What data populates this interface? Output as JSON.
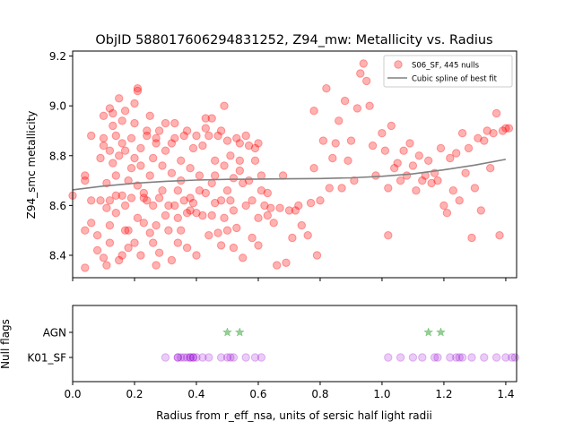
{
  "title": "ObjID 588017606294831252, Z94_mw: Metallicity vs. Radius",
  "chart_data": [
    {
      "type": "scatter",
      "ylabel": "Z94_smc metallicity",
      "xlim": [
        0.0,
        1.435
      ],
      "ylim": [
        8.31,
        9.22
      ],
      "yticks": [
        "8.4",
        "8.6",
        "8.8",
        "9.0",
        "9.2"
      ],
      "ytick_values": [
        8.4,
        8.6,
        8.8,
        9.0,
        9.2
      ],
      "xtick_values": [
        0.0,
        0.2,
        0.4,
        0.6,
        0.8,
        1.0,
        1.2,
        1.4
      ],
      "legend_position": "top-right",
      "series": [
        {
          "name": "S06_SF, 445 nulls",
          "kind": "scatter",
          "color": "#ff0000",
          "points": [
            [
              0.0,
              8.64
            ],
            [
              0.04,
              8.35
            ],
            [
              0.04,
              8.5
            ],
            [
              0.04,
              8.72
            ],
            [
              0.04,
              8.7
            ],
            [
              0.06,
              8.62
            ],
            [
              0.06,
              8.53
            ],
            [
              0.06,
              8.88
            ],
            [
              0.08,
              8.48
            ],
            [
              0.08,
              8.42
            ],
            [
              0.09,
              8.79
            ],
            [
              0.09,
              8.62
            ],
            [
              0.1,
              8.39
            ],
            [
              0.1,
              8.84
            ],
            [
              0.1,
              8.87
            ],
            [
              0.1,
              8.96
            ],
            [
              0.11,
              8.69
            ],
            [
              0.11,
              8.59
            ],
            [
              0.11,
              8.36
            ],
            [
              0.12,
              8.82
            ],
            [
              0.12,
              8.52
            ],
            [
              0.12,
              8.62
            ],
            [
              0.12,
              8.99
            ],
            [
              0.12,
              8.45
            ],
            [
              0.13,
              8.92
            ],
            [
              0.13,
              8.97
            ],
            [
              0.13,
              8.77
            ],
            [
              0.14,
              8.88
            ],
            [
              0.14,
              8.72
            ],
            [
              0.14,
              8.64
            ],
            [
              0.14,
              8.57
            ],
            [
              0.15,
              8.8
            ],
            [
              0.15,
              8.38
            ],
            [
              0.15,
              9.03
            ],
            [
              0.16,
              8.85
            ],
            [
              0.16,
              8.94
            ],
            [
              0.16,
              8.64
            ],
            [
              0.16,
              8.4
            ],
            [
              0.17,
              8.5
            ],
            [
              0.17,
              8.6
            ],
            [
              0.17,
              8.82
            ],
            [
              0.17,
              8.98
            ],
            [
              0.18,
              8.7
            ],
            [
              0.18,
              8.5
            ],
            [
              0.18,
              8.43
            ],
            [
              0.19,
              8.87
            ],
            [
              0.19,
              8.63
            ],
            [
              0.19,
              8.75
            ],
            [
              0.2,
              8.93
            ],
            [
              0.2,
              8.79
            ],
            [
              0.2,
              9.01
            ],
            [
              0.2,
              8.45
            ],
            [
              0.21,
              8.55
            ],
            [
              0.21,
              8.68
            ],
            [
              0.21,
              9.06
            ],
            [
              0.21,
              9.07
            ],
            [
              0.22,
              8.76
            ],
            [
              0.22,
              8.4
            ],
            [
              0.22,
              8.83
            ],
            [
              0.23,
              8.63
            ],
            [
              0.23,
              8.53
            ],
            [
              0.23,
              8.65
            ],
            [
              0.24,
              8.88
            ],
            [
              0.24,
              8.62
            ],
            [
              0.24,
              8.9
            ],
            [
              0.25,
              8.49
            ],
            [
              0.25,
              8.72
            ],
            [
              0.25,
              8.96
            ],
            [
              0.26,
              8.6
            ],
            [
              0.26,
              8.79
            ],
            [
              0.26,
              8.45
            ],
            [
              0.27,
              8.85
            ],
            [
              0.27,
              8.36
            ],
            [
              0.27,
              8.52
            ],
            [
              0.27,
              8.87
            ],
            [
              0.28,
              8.9
            ],
            [
              0.28,
              8.63
            ],
            [
              0.28,
              8.41
            ],
            [
              0.29,
              8.66
            ],
            [
              0.29,
              8.76
            ],
            [
              0.3,
              8.56
            ],
            [
              0.3,
              8.82
            ],
            [
              0.3,
              8.93
            ],
            [
              0.31,
              8.5
            ],
            [
              0.31,
              8.6
            ],
            [
              0.32,
              8.85
            ],
            [
              0.32,
              8.73
            ],
            [
              0.32,
              8.38
            ],
            [
              0.33,
              8.6
            ],
            [
              0.33,
              8.87
            ],
            [
              0.33,
              8.93
            ],
            [
              0.34,
              8.45
            ],
            [
              0.34,
              8.55
            ],
            [
              0.34,
              8.66
            ],
            [
              0.35,
              8.78
            ],
            [
              0.35,
              8.7
            ],
            [
              0.35,
              8.5
            ],
            [
              0.36,
              8.62
            ],
            [
              0.36,
              8.88
            ],
            [
              0.37,
              8.9
            ],
            [
              0.37,
              8.57
            ],
            [
              0.37,
              8.43
            ],
            [
              0.38,
              8.75
            ],
            [
              0.38,
              8.58
            ],
            [
              0.38,
              8.63
            ],
            [
              0.39,
              8.83
            ],
            [
              0.39,
              8.61
            ],
            [
              0.4,
              8.88
            ],
            [
              0.4,
              8.57
            ],
            [
              0.4,
              8.4
            ],
            [
              0.41,
              8.66
            ],
            [
              0.41,
              8.72
            ],
            [
              0.42,
              8.84
            ],
            [
              0.42,
              8.56
            ],
            [
              0.43,
              8.95
            ],
            [
              0.43,
              8.65
            ],
            [
              0.43,
              8.91
            ],
            [
              0.44,
              8.48
            ],
            [
              0.44,
              8.88
            ],
            [
              0.45,
              8.95
            ],
            [
              0.45,
              8.69
            ],
            [
              0.45,
              8.56
            ],
            [
              0.46,
              8.78
            ],
            [
              0.46,
              8.61
            ],
            [
              0.46,
              8.72
            ],
            [
              0.47,
              8.88
            ],
            [
              0.47,
              8.49
            ],
            [
              0.48,
              8.9
            ],
            [
              0.48,
              8.62
            ],
            [
              0.48,
              8.44
            ],
            [
              0.49,
              8.76
            ],
            [
              0.49,
              8.55
            ],
            [
              0.49,
              9.0
            ],
            [
              0.5,
              8.66
            ],
            [
              0.5,
              8.86
            ],
            [
              0.5,
              8.5
            ],
            [
              0.51,
              8.62
            ],
            [
              0.51,
              8.8
            ],
            [
              0.52,
              8.58
            ],
            [
              0.52,
              8.71
            ],
            [
              0.52,
              8.43
            ],
            [
              0.53,
              8.87
            ],
            [
              0.53,
              8.51
            ],
            [
              0.54,
              8.74
            ],
            [
              0.54,
              8.78
            ],
            [
              0.54,
              8.85
            ],
            [
              0.55,
              8.39
            ],
            [
              0.55,
              8.69
            ],
            [
              0.56,
              8.6
            ],
            [
              0.56,
              8.88
            ],
            [
              0.57,
              8.7
            ],
            [
              0.57,
              8.84
            ],
            [
              0.58,
              8.62
            ],
            [
              0.58,
              8.47
            ],
            [
              0.59,
              8.78
            ],
            [
              0.59,
              8.83
            ],
            [
              0.6,
              8.55
            ],
            [
              0.6,
              8.85
            ],
            [
              0.6,
              8.44
            ],
            [
              0.61,
              8.72
            ],
            [
              0.61,
              8.66
            ],
            [
              0.62,
              8.6
            ],
            [
              0.63,
              8.65
            ],
            [
              0.63,
              8.56
            ],
            [
              0.64,
              8.59
            ],
            [
              0.65,
              8.53
            ],
            [
              0.66,
              8.36
            ],
            [
              0.67,
              8.59
            ],
            [
              0.68,
              8.72
            ],
            [
              0.69,
              8.37
            ],
            [
              0.7,
              8.58
            ],
            [
              0.71,
              8.47
            ],
            [
              0.72,
              8.58
            ],
            [
              0.73,
              8.6
            ],
            [
              0.74,
              8.52
            ],
            [
              0.76,
              8.48
            ],
            [
              0.77,
              8.61
            ],
            [
              0.78,
              8.75
            ],
            [
              0.78,
              8.98
            ],
            [
              0.79,
              8.4
            ],
            [
              0.8,
              8.62
            ],
            [
              0.81,
              8.86
            ],
            [
              0.82,
              9.07
            ],
            [
              0.83,
              8.67
            ],
            [
              0.84,
              8.79
            ],
            [
              0.85,
              8.85
            ],
            [
              0.86,
              8.94
            ],
            [
              0.87,
              8.67
            ],
            [
              0.88,
              9.02
            ],
            [
              0.89,
              8.78
            ],
            [
              0.9,
              8.86
            ],
            [
              0.91,
              8.7
            ],
            [
              0.92,
              8.99
            ],
            [
              0.93,
              9.13
            ],
            [
              0.94,
              9.17
            ],
            [
              0.95,
              9.1
            ],
            [
              0.96,
              9.0
            ],
            [
              0.97,
              8.84
            ],
            [
              0.98,
              8.72
            ],
            [
              1.0,
              8.89
            ],
            [
              1.01,
              8.82
            ],
            [
              1.02,
              8.67
            ],
            [
              1.02,
              8.48
            ],
            [
              1.03,
              8.92
            ],
            [
              1.04,
              8.75
            ],
            [
              1.05,
              8.77
            ],
            [
              1.06,
              8.7
            ],
            [
              1.07,
              8.82
            ],
            [
              1.08,
              8.72
            ],
            [
              1.09,
              8.85
            ],
            [
              1.1,
              8.76
            ],
            [
              1.11,
              8.66
            ],
            [
              1.12,
              8.8
            ],
            [
              1.13,
              8.7
            ],
            [
              1.14,
              8.72
            ],
            [
              1.15,
              8.78
            ],
            [
              1.16,
              8.69
            ],
            [
              1.17,
              8.73
            ],
            [
              1.18,
              8.7
            ],
            [
              1.19,
              8.83
            ],
            [
              1.2,
              8.6
            ],
            [
              1.21,
              8.57
            ],
            [
              1.22,
              8.79
            ],
            [
              1.23,
              8.66
            ],
            [
              1.24,
              8.81
            ],
            [
              1.25,
              8.62
            ],
            [
              1.26,
              8.89
            ],
            [
              1.27,
              8.73
            ],
            [
              1.28,
              8.83
            ],
            [
              1.29,
              8.47
            ],
            [
              1.3,
              8.67
            ],
            [
              1.31,
              8.87
            ],
            [
              1.32,
              8.58
            ],
            [
              1.33,
              8.86
            ],
            [
              1.34,
              8.9
            ],
            [
              1.35,
              8.75
            ],
            [
              1.36,
              8.89
            ],
            [
              1.37,
              8.97
            ],
            [
              1.38,
              8.48
            ],
            [
              1.39,
              8.9
            ],
            [
              1.4,
              8.91
            ],
            [
              1.41,
              8.91
            ]
          ]
        },
        {
          "name": "Cubic spline of best fit",
          "kind": "line",
          "color": "#808080",
          "points": [
            [
              0.0,
              8.663
            ],
            [
              0.1,
              8.678
            ],
            [
              0.2,
              8.689
            ],
            [
              0.3,
              8.697
            ],
            [
              0.4,
              8.702
            ],
            [
              0.5,
              8.705
            ],
            [
              0.6,
              8.706
            ],
            [
              0.7,
              8.707
            ],
            [
              0.8,
              8.708
            ],
            [
              0.9,
              8.711
            ],
            [
              1.0,
              8.717
            ],
            [
              1.1,
              8.727
            ],
            [
              1.2,
              8.743
            ],
            [
              1.3,
              8.762
            ],
            [
              1.4,
              8.785
            ]
          ]
        }
      ]
    },
    {
      "type": "scatter",
      "ylabel": "Null flags",
      "xlabel": "Radius from r_eff_nsa, units of sersic half light radii",
      "xlim": [
        0.0,
        1.435
      ],
      "xticks": [
        "0.0",
        "0.2",
        "0.4",
        "0.6",
        "0.8",
        "1.0",
        "1.2",
        "1.4"
      ],
      "xtick_values": [
        0.0,
        0.2,
        0.4,
        0.6,
        0.8,
        1.0,
        1.2,
        1.4
      ],
      "categories": [
        "K01_SF",
        "AGN"
      ],
      "series": [
        {
          "name": "AGN",
          "kind": "star",
          "color": "#2ca02c",
          "x": [
            0.5,
            0.54,
            1.15,
            1.19
          ]
        },
        {
          "name": "K01_SF",
          "kind": "circle",
          "color": "#9400d3",
          "x": [
            0.3,
            0.34,
            0.34,
            0.35,
            0.36,
            0.37,
            0.38,
            0.38,
            0.39,
            0.39,
            0.4,
            0.42,
            0.44,
            0.48,
            0.5,
            0.51,
            0.52,
            0.56,
            0.59,
            0.61,
            1.02,
            1.06,
            1.1,
            1.13,
            1.17,
            1.18,
            1.22,
            1.24,
            1.25,
            1.26,
            1.29,
            1.33,
            1.37,
            1.4,
            1.42,
            1.43
          ]
        }
      ]
    }
  ]
}
